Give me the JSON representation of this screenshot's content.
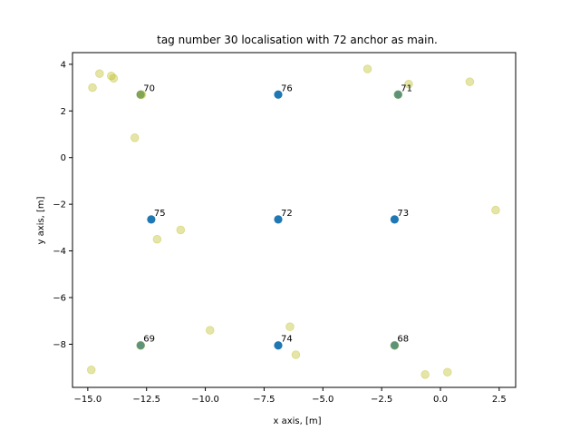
{
  "chart_data": {
    "type": "scatter",
    "title": "tag number 30 localisation with 72 anchor as main.",
    "xlabel": "x axis, [m]",
    "ylabel": "y axis, [m]",
    "xlim": [
      -15.65,
      3.2
    ],
    "ylim": [
      -9.85,
      4.5
    ],
    "xticks": [
      -15.0,
      -12.5,
      -10.0,
      -7.5,
      -5.0,
      -2.5,
      0.0,
      2.5
    ],
    "xtick_labels": [
      "−15.0",
      "−12.5",
      "−10.0",
      "−7.5",
      "−5.0",
      "−2.5",
      "0.0",
      "2.5"
    ],
    "yticks": [
      4,
      2,
      0,
      -2,
      -4,
      -6,
      -8
    ],
    "ytick_labels": [
      "4",
      "2",
      "0",
      "−2",
      "−4",
      "−6",
      "−8"
    ],
    "grid": false,
    "colors": {
      "anchor": "#1f77b4",
      "estimate": "#bcbd22",
      "frame": "#000000"
    },
    "series": [
      {
        "points": [
          {
            "x": -12.75,
            "y": 2.7
          },
          {
            "x": -1.8,
            "y": 2.7
          },
          {
            "x": -12.75,
            "y": -8.05
          },
          {
            "x": -1.95,
            "y": -8.05
          },
          {
            "x": -6.9,
            "y": 2.7
          },
          {
            "x": -12.3,
            "y": -2.65
          },
          {
            "x": -6.9,
            "y": -2.65
          },
          {
            "x": -1.95,
            "y": -2.65
          },
          {
            "x": -6.9,
            "y": -8.05
          }
        ]
      },
      {
        "points": [
          {
            "x": -14.5,
            "y": 3.6
          },
          {
            "x": -14.0,
            "y": 3.5
          },
          {
            "x": -13.9,
            "y": 3.4
          },
          {
            "x": -14.8,
            "y": 3.0
          },
          {
            "x": -12.75,
            "y": 2.7
          },
          {
            "x": -12.7,
            "y": 2.7
          },
          {
            "x": -13.0,
            "y": 0.85
          },
          {
            "x": -3.1,
            "y": 3.8
          },
          {
            "x": -1.35,
            "y": 3.15
          },
          {
            "x": -1.8,
            "y": 2.7
          },
          {
            "x": 1.25,
            "y": 3.25
          },
          {
            "x": -12.05,
            "y": -3.5
          },
          {
            "x": -11.05,
            "y": -3.1
          },
          {
            "x": 2.35,
            "y": -2.25
          },
          {
            "x": -12.75,
            "y": -8.05
          },
          {
            "x": -9.8,
            "y": -7.4
          },
          {
            "x": -6.4,
            "y": -7.25
          },
          {
            "x": -6.15,
            "y": -8.45
          },
          {
            "x": -1.95,
            "y": -8.05
          },
          {
            "x": -14.85,
            "y": -9.1
          },
          {
            "x": -0.65,
            "y": -9.3
          },
          {
            "x": 0.3,
            "y": -9.2
          }
        ]
      }
    ],
    "annotations": [
      {
        "text": "70",
        "x": -12.75,
        "y": 2.7
      },
      {
        "text": "76",
        "x": -6.9,
        "y": 2.7
      },
      {
        "text": "71",
        "x": -1.8,
        "y": 2.7
      },
      {
        "text": "75",
        "x": -12.3,
        "y": -2.65
      },
      {
        "text": "72",
        "x": -6.9,
        "y": -2.65
      },
      {
        "text": "73",
        "x": -1.95,
        "y": -2.65
      },
      {
        "text": "69",
        "x": -12.75,
        "y": -8.05
      },
      {
        "text": "74",
        "x": -6.9,
        "y": -8.05
      },
      {
        "text": "68",
        "x": -1.95,
        "y": -8.05
      }
    ]
  }
}
